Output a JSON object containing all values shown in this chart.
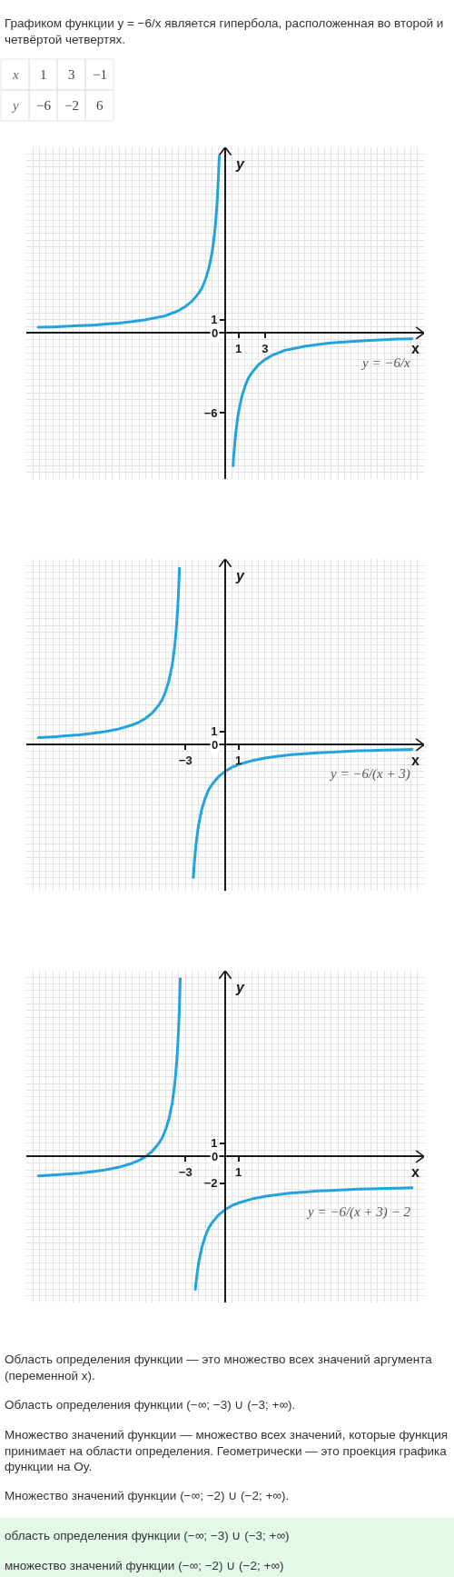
{
  "chart_data": [
    {
      "type": "other",
      "title": "Графиком функции y = −6/x является гипербола, расположенная во второй и четвёртой четвертях.",
      "annotations": [
        "x",
        "1",
        "3",
        "−1",
        "y",
        "−6",
        "−2",
        "6"
      ]
    },
    {
      "type": "line",
      "xlabel": "x",
      "ylabel": "y",
      "xlim": [
        -15,
        15
      ],
      "ylim": [
        -11,
        14
      ],
      "grid": true,
      "xticks": [
        {
          "value": -14.5,
          "label": null
        },
        {
          "value": -14,
          "label": null
        },
        {
          "value": -13.5,
          "label": null
        },
        {
          "value": -13,
          "label": null
        },
        {
          "value": -12.5,
          "label": null
        },
        {
          "value": -12,
          "label": null
        },
        {
          "value": -11.5,
          "label": null
        },
        {
          "value": -11,
          "label": null
        },
        {
          "value": -10.5,
          "label": null
        },
        {
          "value": -10,
          "label": null
        },
        {
          "value": -9.5,
          "label": null
        },
        {
          "value": -9,
          "label": null
        },
        {
          "value": -8.5,
          "label": null
        },
        {
          "value": -8,
          "label": null
        },
        {
          "value": -7.5,
          "label": null
        },
        {
          "value": -7,
          "label": null
        },
        {
          "value": -6.5,
          "label": null
        },
        {
          "value": -6,
          "label": null
        },
        {
          "value": -5.5,
          "label": null
        },
        {
          "value": -5,
          "label": null
        },
        {
          "value": -4.5,
          "label": null
        },
        {
          "value": -4,
          "label": null
        },
        {
          "value": -3.5,
          "label": null
        },
        {
          "value": -3,
          "label": null
        },
        {
          "value": -2.5,
          "label": null
        },
        {
          "value": -2,
          "label": null
        },
        {
          "value": -1.5,
          "label": null
        },
        {
          "value": -1,
          "label": null
        },
        {
          "value": -0.5,
          "label": null
        },
        {
          "value": 0,
          "label": null
        },
        {
          "value": 0.5,
          "label": null
        },
        1,
        {
          "value": 1.5,
          "label": null
        },
        {
          "value": 2,
          "label": null
        },
        {
          "value": 2.5,
          "label": null
        },
        3,
        {
          "value": 3.5,
          "label": null
        },
        {
          "value": 4,
          "label": null
        },
        {
          "value": 4.5,
          "label": null
        },
        {
          "value": 5,
          "label": null
        },
        {
          "value": 5.5,
          "label": null
        },
        {
          "value": 6,
          "label": null
        },
        {
          "value": 6.5,
          "label": null
        },
        {
          "value": 7,
          "label": null
        },
        {
          "value": 7.5,
          "label": null
        },
        {
          "value": 8,
          "label": null
        },
        {
          "value": 8.5,
          "label": null
        },
        {
          "value": 9,
          "label": null
        },
        {
          "value": 9.5,
          "label": null
        },
        {
          "value": 10,
          "label": null
        },
        {
          "value": 10.5,
          "label": null
        },
        {
          "value": 11,
          "label": null
        },
        {
          "value": 11.5,
          "label": null
        },
        {
          "value": 12,
          "label": null
        },
        {
          "value": 12.5,
          "label": null
        },
        {
          "value": 13,
          "label": null
        },
        {
          "value": 13.5,
          "label": null
        },
        {
          "value": 14,
          "label": null
        },
        {
          "value": 14.5,
          "label": null
        }
      ],
      "yticks": [
        {
          "value": -10.5,
          "label": null
        },
        {
          "value": -10,
          "label": null
        },
        {
          "value": -9.5,
          "label": null
        },
        {
          "value": -9,
          "label": null
        },
        {
          "value": -8.5,
          "label": null
        },
        {
          "value": -8,
          "label": null
        },
        {
          "value": -7.5,
          "label": null
        },
        {
          "value": -7,
          "label": null
        },
        {
          "value": -6.5,
          "label": null
        },
        -6,
        {
          "value": -5.5,
          "label": null
        },
        {
          "value": -5,
          "label": null
        },
        {
          "value": -4.5,
          "label": null
        },
        {
          "value": -4,
          "label": null
        },
        {
          "value": -3.5,
          "label": null
        },
        {
          "value": -3,
          "label": null
        },
        {
          "value": -2.5,
          "label": null
        },
        {
          "value": -2,
          "label": null
        },
        {
          "value": -1.5,
          "label": null
        },
        {
          "value": -1,
          "label": null
        },
        {
          "value": -0.5,
          "label": null
        },
        0,
        {
          "value": 0.5,
          "label": null
        },
        1,
        {
          "value": 1.5,
          "label": null
        },
        {
          "value": 2,
          "label": null
        },
        {
          "value": 2.5,
          "label": null
        },
        {
          "value": 3,
          "label": null
        },
        {
          "value": 3.5,
          "label": null
        },
        {
          "value": 4,
          "label": null
        },
        {
          "value": 4.5,
          "label": null
        },
        {
          "value": 5,
          "label": null
        },
        {
          "value": 5.5,
          "label": null
        },
        {
          "value": 6,
          "label": null
        },
        {
          "value": 6.5,
          "label": null
        },
        {
          "value": 7,
          "label": null
        },
        {
          "value": 7.5,
          "label": null
        },
        {
          "value": 8,
          "label": null
        },
        {
          "value": 8.5,
          "label": null
        },
        {
          "value": 9,
          "label": null
        },
        {
          "value": 9.5,
          "label": null
        },
        {
          "value": 10,
          "label": null
        },
        {
          "value": 10.5,
          "label": null
        },
        {
          "value": 11,
          "label": null
        },
        {
          "value": 11.5,
          "label": null
        },
        {
          "value": 12,
          "label": null
        },
        {
          "value": 12.5,
          "label": null
        },
        {
          "value": 13,
          "label": null
        },
        {
          "value": 13.5,
          "label": null
        }
      ],
      "series": [
        {
          "name": "y = −6/x",
          "color": "#22a3dd",
          "x": [
            -14.1,
            -13,
            -12,
            -11,
            -10,
            -9,
            -8,
            -7,
            -6,
            -5,
            -4.5,
            -4,
            -3.5,
            -3,
            -2.5,
            -2,
            -1.75,
            -1.5,
            -1.25,
            -1,
            -0.9,
            -0.8,
            -0.7,
            -0.6,
            -0.55,
            -0.5,
            -0.45,
            0,
            0.6,
            0.65,
            0.7,
            0.8,
            0.9,
            1,
            1.25,
            1.5,
            1.75,
            2,
            2.5,
            3,
            3.5,
            4,
            4.5,
            5,
            6,
            7,
            8,
            9,
            10,
            11,
            12,
            13,
            14.1
          ],
          "values": [
            0.43,
            0.46,
            0.5,
            0.55,
            0.6,
            0.67,
            0.75,
            0.86,
            1,
            1.2,
            1.3,
            1.5,
            1.7,
            2,
            2.4,
            3,
            3.4,
            4,
            4.8,
            6,
            6.7,
            7.5,
            8.6,
            10,
            10.9,
            12,
            13.3,
            null,
            -10,
            -9.2,
            -8.6,
            -7.5,
            -6.7,
            -6,
            -4.8,
            -4,
            -3.4,
            -3,
            -2.4,
            -2,
            -1.7,
            -1.5,
            -1.3,
            -1.2,
            -1,
            -0.86,
            -0.75,
            -0.67,
            -0.6,
            -0.55,
            -0.5,
            -0.46,
            -0.43
          ]
        }
      ]
    },
    {
      "type": "line",
      "xlabel": "x",
      "ylabel": "y",
      "xlim": [
        -15,
        15
      ],
      "ylim": [
        -11,
        14
      ],
      "grid": true,
      "xticks": [
        {
          "value": -14.5,
          "label": null
        },
        {
          "value": -14,
          "label": null
        },
        {
          "value": -13.5,
          "label": null
        },
        {
          "value": -13,
          "label": null
        },
        {
          "value": -12.5,
          "label": null
        },
        {
          "value": -12,
          "label": null
        },
        {
          "value": -11.5,
          "label": null
        },
        {
          "value": -11,
          "label": null
        },
        {
          "value": -10.5,
          "label": null
        },
        {
          "value": -10,
          "label": null
        },
        {
          "value": -9.5,
          "label": null
        },
        {
          "value": -9,
          "label": null
        },
        {
          "value": -8.5,
          "label": null
        },
        {
          "value": -8,
          "label": null
        },
        {
          "value": -7.5,
          "label": null
        },
        {
          "value": -7,
          "label": null
        },
        {
          "value": -6.5,
          "label": null
        },
        {
          "value": -6,
          "label": null
        },
        {
          "value": -5.5,
          "label": null
        },
        {
          "value": -5,
          "label": null
        },
        {
          "value": -4.5,
          "label": null
        },
        {
          "value": -4,
          "label": null
        },
        {
          "value": -3.5,
          "label": null
        },
        -3,
        {
          "value": -2.5,
          "label": null
        },
        {
          "value": -2,
          "label": null
        },
        {
          "value": -1.5,
          "label": null
        },
        {
          "value": -1,
          "label": null
        },
        {
          "value": -0.5,
          "label": null
        },
        {
          "value": 0,
          "label": null
        },
        {
          "value": 0.5,
          "label": null
        },
        1,
        {
          "value": 1.5,
          "label": null
        },
        {
          "value": 2,
          "label": null
        },
        {
          "value": 2.5,
          "label": null
        },
        {
          "value": 3,
          "label": null
        },
        {
          "value": 3.5,
          "label": null
        },
        {
          "value": 4,
          "label": null
        },
        {
          "value": 4.5,
          "label": null
        },
        {
          "value": 5,
          "label": null
        },
        {
          "value": 5.5,
          "label": null
        },
        {
          "value": 6,
          "label": null
        },
        {
          "value": 6.5,
          "label": null
        },
        {
          "value": 7,
          "label": null
        },
        {
          "value": 7.5,
          "label": null
        },
        {
          "value": 8,
          "label": null
        },
        {
          "value": 8.5,
          "label": null
        },
        {
          "value": 9,
          "label": null
        },
        {
          "value": 9.5,
          "label": null
        },
        {
          "value": 10,
          "label": null
        },
        {
          "value": 10.5,
          "label": null
        },
        {
          "value": 11,
          "label": null
        },
        {
          "value": 11.5,
          "label": null
        },
        {
          "value": 12,
          "label": null
        },
        {
          "value": 12.5,
          "label": null
        },
        {
          "value": 13,
          "label": null
        },
        {
          "value": 13.5,
          "label": null
        },
        {
          "value": 14,
          "label": null
        },
        {
          "value": 14.5,
          "label": null
        }
      ],
      "yticks": [
        {
          "value": -10.5,
          "label": null
        },
        {
          "value": -10,
          "label": null
        },
        {
          "value": -9.5,
          "label": null
        },
        {
          "value": -9,
          "label": null
        },
        {
          "value": -8.5,
          "label": null
        },
        {
          "value": -8,
          "label": null
        },
        {
          "value": -7.5,
          "label": null
        },
        {
          "value": -7,
          "label": null
        },
        {
          "value": -6.5,
          "label": null
        },
        {
          "value": -6,
          "label": null
        },
        {
          "value": -5.5,
          "label": null
        },
        {
          "value": -5,
          "label": null
        },
        {
          "value": -4.5,
          "label": null
        },
        {
          "value": -4,
          "label": null
        },
        {
          "value": -3.5,
          "label": null
        },
        {
          "value": -3,
          "label": null
        },
        {
          "value": -2.5,
          "label": null
        },
        {
          "value": -2,
          "label": null
        },
        {
          "value": -1.5,
          "label": null
        },
        {
          "value": -1,
          "label": null
        },
        {
          "value": -0.5,
          "label": null
        },
        0,
        {
          "value": 0.5,
          "label": null
        },
        1,
        {
          "value": 1.5,
          "label": null
        },
        {
          "value": 2,
          "label": null
        },
        {
          "value": 2.5,
          "label": null
        },
        {
          "value": 3,
          "label": null
        },
        {
          "value": 3.5,
          "label": null
        },
        {
          "value": 4,
          "label": null
        },
        {
          "value": 4.5,
          "label": null
        },
        {
          "value": 5,
          "label": null
        },
        {
          "value": 5.5,
          "label": null
        },
        {
          "value": 6,
          "label": null
        },
        {
          "value": 6.5,
          "label": null
        },
        {
          "value": 7,
          "label": null
        },
        {
          "value": 7.5,
          "label": null
        },
        {
          "value": 8,
          "label": null
        },
        {
          "value": 8.5,
          "label": null
        },
        {
          "value": 9,
          "label": null
        },
        {
          "value": 9.5,
          "label": null
        },
        {
          "value": 10,
          "label": null
        },
        {
          "value": 10.5,
          "label": null
        },
        {
          "value": 11,
          "label": null
        },
        {
          "value": 11.5,
          "label": null
        },
        {
          "value": 12,
          "label": null
        },
        {
          "value": 12.5,
          "label": null
        },
        {
          "value": 13,
          "label": null
        },
        {
          "value": 13.5,
          "label": null
        }
      ],
      "series": [
        {
          "name": "y = −6/(x + 3)",
          "color": "#22a3dd",
          "x": [
            -14.1,
            -13,
            -12,
            -11,
            -10,
            -9,
            -8,
            -7,
            -6.5,
            -6,
            -5.5,
            -5,
            -4.75,
            -4.5,
            -4.25,
            -4,
            -3.9,
            -3.8,
            -3.7,
            -3.6,
            -3.55,
            -3.5,
            -3.45,
            -3,
            -2.4,
            -2.35,
            -2.3,
            -2.2,
            -2.1,
            -2,
            -1.75,
            -1.5,
            -1.25,
            -1,
            -0.5,
            0,
            0.5,
            1,
            2,
            3,
            4,
            5,
            6,
            7,
            8,
            9,
            10,
            11,
            12,
            13,
            14.1
          ],
          "values": [
            0.54,
            0.6,
            0.67,
            0.75,
            0.86,
            1,
            1.2,
            1.5,
            1.7,
            2,
            2.4,
            3,
            3.4,
            4,
            4.8,
            6,
            6.7,
            7.5,
            8.6,
            10,
            10.9,
            12,
            13.3,
            null,
            -10,
            -9.2,
            -8.6,
            -7.5,
            -6.7,
            -6,
            -4.8,
            -4,
            -3.4,
            -3,
            -2.4,
            -2,
            -1.7,
            -1.5,
            -1.2,
            -1,
            -0.86,
            -0.75,
            -0.67,
            -0.6,
            -0.55,
            -0.5,
            -0.46,
            -0.43,
            -0.4,
            -0.38,
            -0.35
          ]
        }
      ]
    },
    {
      "type": "line",
      "xlabel": "x",
      "ylabel": "y",
      "xlim": [
        -15,
        15
      ],
      "ylim": [
        -11,
        14
      ],
      "grid": true,
      "xticks": [
        {
          "value": -14.5,
          "label": null
        },
        {
          "value": -14,
          "label": null
        },
        {
          "value": -13.5,
          "label": null
        },
        {
          "value": -13,
          "label": null
        },
        {
          "value": -12.5,
          "label": null
        },
        {
          "value": -12,
          "label": null
        },
        {
          "value": -11.5,
          "label": null
        },
        {
          "value": -11,
          "label": null
        },
        {
          "value": -10.5,
          "label": null
        },
        {
          "value": -10,
          "label": null
        },
        {
          "value": -9.5,
          "label": null
        },
        {
          "value": -9,
          "label": null
        },
        {
          "value": -8.5,
          "label": null
        },
        {
          "value": -8,
          "label": null
        },
        {
          "value": -7.5,
          "label": null
        },
        {
          "value": -7,
          "label": null
        },
        {
          "value": -6.5,
          "label": null
        },
        {
          "value": -6,
          "label": null
        },
        {
          "value": -5.5,
          "label": null
        },
        {
          "value": -5,
          "label": null
        },
        {
          "value": -4.5,
          "label": null
        },
        {
          "value": -4,
          "label": null
        },
        {
          "value": -3.5,
          "label": null
        },
        -3,
        {
          "value": -2.5,
          "label": null
        },
        {
          "value": -2,
          "label": null
        },
        {
          "value": -1.5,
          "label": null
        },
        {
          "value": -1,
          "label": null
        },
        {
          "value": -0.5,
          "label": null
        },
        {
          "value": 0,
          "label": null
        },
        {
          "value": 0.5,
          "label": null
        },
        1,
        {
          "value": 1.5,
          "label": null
        },
        {
          "value": 2,
          "label": null
        },
        {
          "value": 2.5,
          "label": null
        },
        {
          "value": 3,
          "label": null
        },
        {
          "value": 3.5,
          "label": null
        },
        {
          "value": 4,
          "label": null
        },
        {
          "value": 4.5,
          "label": null
        },
        {
          "value": 5,
          "label": null
        },
        {
          "value": 5.5,
          "label": null
        },
        {
          "value": 6,
          "label": null
        },
        {
          "value": 6.5,
          "label": null
        },
        {
          "value": 7,
          "label": null
        },
        {
          "value": 7.5,
          "label": null
        },
        {
          "value": 8,
          "label": null
        },
        {
          "value": 8.5,
          "label": null
        },
        {
          "value": 9,
          "label": null
        },
        {
          "value": 9.5,
          "label": null
        },
        {
          "value": 10,
          "label": null
        },
        {
          "value": 10.5,
          "label": null
        },
        {
          "value": 11,
          "label": null
        },
        {
          "value": 11.5,
          "label": null
        },
        {
          "value": 12,
          "label": null
        },
        {
          "value": 12.5,
          "label": null
        },
        {
          "value": 13,
          "label": null
        },
        {
          "value": 13.5,
          "label": null
        },
        {
          "value": 14,
          "label": null
        },
        {
          "value": 14.5,
          "label": null
        }
      ],
      "yticks": [
        {
          "value": -10.5,
          "label": null
        },
        {
          "value": -10,
          "label": null
        },
        {
          "value": -9.5,
          "label": null
        },
        {
          "value": -9,
          "label": null
        },
        {
          "value": -8.5,
          "label": null
        },
        {
          "value": -8,
          "label": null
        },
        {
          "value": -7.5,
          "label": null
        },
        {
          "value": -7,
          "label": null
        },
        {
          "value": -6.5,
          "label": null
        },
        {
          "value": -6,
          "label": null
        },
        {
          "value": -5.5,
          "label": null
        },
        {
          "value": -5,
          "label": null
        },
        {
          "value": -4.5,
          "label": null
        },
        {
          "value": -4,
          "label": null
        },
        {
          "value": -3.5,
          "label": null
        },
        {
          "value": -3,
          "label": null
        },
        {
          "value": -2.5,
          "label": null
        },
        -2,
        {
          "value": -1.5,
          "label": null
        },
        {
          "value": -1,
          "label": null
        },
        {
          "value": -0.5,
          "label": null
        },
        0,
        {
          "value": 0.5,
          "label": null
        },
        1,
        {
          "value": 1.5,
          "label": null
        },
        {
          "value": 2,
          "label": null
        },
        {
          "value": 2.5,
          "label": null
        },
        {
          "value": 3,
          "label": null
        },
        {
          "value": 3.5,
          "label": null
        },
        {
          "value": 4,
          "label": null
        },
        {
          "value": 4.5,
          "label": null
        },
        {
          "value": 5,
          "label": null
        },
        {
          "value": 5.5,
          "label": null
        },
        {
          "value": 6,
          "label": null
        },
        {
          "value": 6.5,
          "label": null
        },
        {
          "value": 7,
          "label": null
        },
        {
          "value": 7.5,
          "label": null
        },
        {
          "value": 8,
          "label": null
        },
        {
          "value": 8.5,
          "label": null
        },
        {
          "value": 9,
          "label": null
        },
        {
          "value": 9.5,
          "label": null
        },
        {
          "value": 10,
          "label": null
        },
        {
          "value": 10.5,
          "label": null
        },
        {
          "value": 11,
          "label": null
        },
        {
          "value": 11.5,
          "label": null
        },
        {
          "value": 12,
          "label": null
        },
        {
          "value": 12.5,
          "label": null
        },
        {
          "value": 13,
          "label": null
        },
        {
          "value": 13.5,
          "label": null
        }
      ],
      "series": [
        {
          "name": "y = −6/(x + 3) − 2",
          "color": "#22a3dd",
          "x": [
            -14.1,
            -13,
            -12,
            -11,
            -10,
            -9,
            -8,
            -7,
            -6.5,
            -6,
            -5.5,
            -5,
            -4.75,
            -4.5,
            -4.25,
            -4,
            -3.9,
            -3.8,
            -3.7,
            -3.6,
            -3.55,
            -3.5,
            -3.45,
            -3.42,
            -3.39,
            -3,
            -2.25,
            -2.2,
            -2.1,
            -2,
            -1.75,
            -1.5,
            -1.25,
            -1,
            -0.5,
            0,
            0.5,
            1,
            2,
            3,
            4,
            5,
            6,
            7,
            8,
            9,
            10,
            11,
            12,
            13,
            14.1
          ],
          "values": [
            -1.46,
            -1.4,
            -1.33,
            -1.25,
            -1.14,
            -1,
            -0.8,
            -0.5,
            -0.29,
            0,
            0.4,
            1,
            1.4,
            2,
            2.8,
            4,
            4.7,
            5.5,
            6.6,
            8,
            8.9,
            10,
            11.3,
            12.3,
            13.4,
            null,
            -10,
            -9.5,
            -8.7,
            -8,
            -6.8,
            -6,
            -5.4,
            -5,
            -4.4,
            -4,
            -3.7,
            -3.5,
            -3.2,
            -3,
            -2.86,
            -2.75,
            -2.67,
            -2.6,
            -2.55,
            -2.5,
            -2.46,
            -2.43,
            -2.4,
            -2.38,
            -2.35
          ]
        }
      ]
    },
    {
      "type": "other",
      "annotations": [
        "Область определения функции — это множество всех значений аргумента (переменной x).",
        "Область определения функции (−∞; −3) ∪ (−3; +∞).",
        "Множество значений функции — множество всех значений, которые функция принимает на области определения. Геометрически — это проекция графика функции на Oy.",
        "Множество значений функции (−∞; −2) ∪ (−2; +∞)."
      ]
    },
    {
      "type": "other",
      "annotations": [
        "область определения функции (−∞; −3) ∪ (−3; +∞)",
        "множество значений функции (−∞; −2) ∪ (−2; +∞)"
      ]
    }
  ]
}
